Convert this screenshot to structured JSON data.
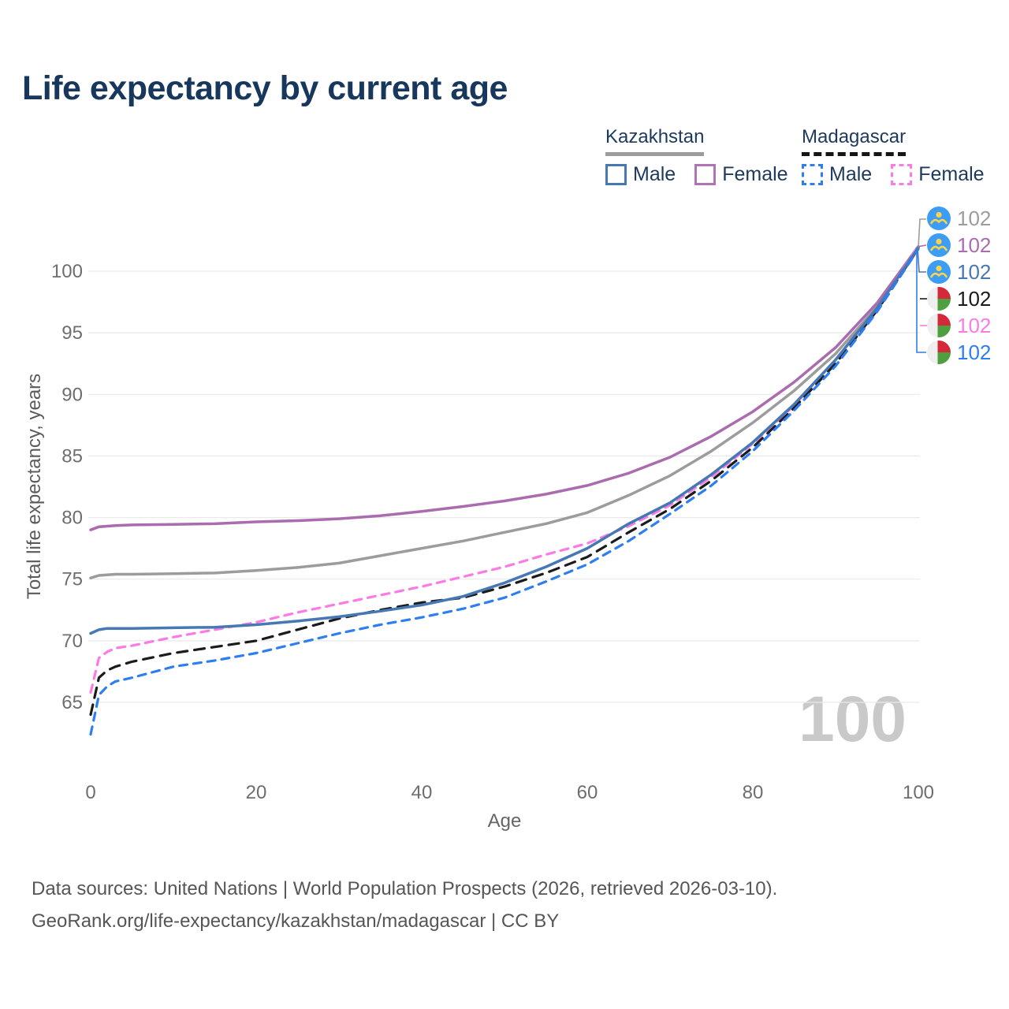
{
  "title": "Life expectancy by current age",
  "legend": {
    "groups": [
      {
        "country": "Kazakhstan",
        "line_style": "solid",
        "line_color": "#9c9c9c",
        "items": [
          {
            "label": "Male",
            "color": "#4678b4",
            "dashed": false
          },
          {
            "label": "Female",
            "color": "#b273b5",
            "dashed": false
          }
        ]
      },
      {
        "country": "Madagascar",
        "line_style": "dashed",
        "line_color": "#161616",
        "items": [
          {
            "label": "Male",
            "color": "#2e7ef2",
            "dashed": true
          },
          {
            "label": "Female",
            "color": "#fb7be4",
            "dashed": true
          }
        ]
      }
    ]
  },
  "y_axis": {
    "title": "Total life expectancy, years",
    "ticks": [
      65,
      70,
      75,
      80,
      85,
      90,
      95,
      100
    ]
  },
  "x_axis": {
    "title": "Age",
    "ticks": [
      0,
      20,
      40,
      60,
      80,
      100
    ]
  },
  "watermark": "100",
  "endpoints": [
    {
      "value": "102",
      "color": "#9c9c9c",
      "flag": "kazakhstan"
    },
    {
      "value": "102",
      "color": "#aa6cae",
      "flag": "kazakhstan"
    },
    {
      "value": "102",
      "color": "#4678b4",
      "flag": "kazakhstan"
    },
    {
      "value": "102",
      "color": "#1a1a1a",
      "flag": "madagascar"
    },
    {
      "value": "102",
      "color": "#fb7be4",
      "flag": "madagascar"
    },
    {
      "value": "102",
      "color": "#2e7ef2",
      "flag": "madagascar"
    }
  ],
  "footer": {
    "line1": "Data sources: United Nations | World Population Prospects (2026, retrieved 2026-03-10).",
    "line2": "GeoRank.org/life-expectancy/kazakhstan/madagascar | CC BY"
  },
  "chart_data": {
    "type": "line",
    "title": "Life expectancy by current age",
    "xlabel": "Age",
    "ylabel": "Total life expectancy, years",
    "xlim": [
      0,
      100
    ],
    "ylim": [
      62,
      103
    ],
    "grid": "horizontal",
    "x": [
      0,
      1,
      2,
      3,
      5,
      10,
      15,
      20,
      25,
      30,
      35,
      40,
      45,
      50,
      55,
      60,
      65,
      70,
      75,
      80,
      85,
      90,
      95,
      100
    ],
    "series": [
      {
        "name": "Kazakhstan",
        "country": "Kazakhstan",
        "sex": "all",
        "color": "#9c9c9c",
        "dash": "solid",
        "values": [
          75.1,
          75.3,
          75.35,
          75.4,
          75.4,
          75.45,
          75.5,
          75.7,
          75.95,
          76.3,
          76.9,
          77.5,
          78.1,
          78.8,
          79.5,
          80.4,
          81.8,
          83.4,
          85.4,
          87.7,
          90.3,
          93.3,
          97.1,
          101.95
        ]
      },
      {
        "name": "Kazakhstan Female",
        "country": "Kazakhstan",
        "sex": "female",
        "color": "#aa6cae",
        "dash": "solid",
        "values": [
          79.0,
          79.25,
          79.3,
          79.35,
          79.4,
          79.45,
          79.5,
          79.65,
          79.75,
          79.9,
          80.15,
          80.5,
          80.9,
          81.35,
          81.9,
          82.6,
          83.6,
          84.9,
          86.6,
          88.6,
          91.0,
          93.8,
          97.4,
          102.0
        ]
      },
      {
        "name": "Madagascar Female",
        "country": "Madagascar",
        "sex": "female",
        "color": "#fb7be4",
        "dash": "dashed",
        "values": [
          65.8,
          68.6,
          69.1,
          69.4,
          69.6,
          70.3,
          70.9,
          71.5,
          72.3,
          73.0,
          73.7,
          74.4,
          75.2,
          76.0,
          77.0,
          77.9,
          79.3,
          81.0,
          83.3,
          86.0,
          89.1,
          92.8,
          97.0,
          102.0
        ]
      },
      {
        "name": "Madagascar",
        "country": "Madagascar",
        "sex": "all",
        "color": "#1b1b1b",
        "dash": "dashed",
        "values": [
          64.0,
          67.0,
          67.6,
          67.9,
          68.3,
          69.0,
          69.5,
          70.0,
          70.9,
          71.8,
          72.5,
          73.1,
          73.5,
          74.4,
          75.5,
          76.8,
          78.8,
          80.7,
          83.0,
          85.7,
          88.9,
          92.5,
          96.8,
          101.85
        ]
      },
      {
        "name": "Kazakhstan Male",
        "country": "Kazakhstan",
        "sex": "male",
        "color": "#4678b4",
        "dash": "solid",
        "values": [
          70.6,
          70.9,
          71.0,
          71.0,
          71.0,
          71.05,
          71.1,
          71.3,
          71.6,
          71.95,
          72.4,
          72.9,
          73.6,
          74.7,
          76.0,
          77.5,
          79.5,
          81.2,
          83.5,
          86.1,
          89.2,
          92.8,
          97.0,
          101.9
        ]
      },
      {
        "name": "Madagascar Male",
        "country": "Madagascar",
        "sex": "male",
        "color": "#2e7ef2",
        "dash": "dashed",
        "values": [
          62.4,
          65.6,
          66.3,
          66.7,
          67.0,
          67.9,
          68.4,
          69.0,
          69.8,
          70.6,
          71.3,
          71.9,
          72.6,
          73.5,
          74.8,
          76.2,
          78.1,
          80.3,
          82.6,
          85.4,
          88.7,
          92.3,
          96.7,
          101.8
        ]
      }
    ]
  }
}
